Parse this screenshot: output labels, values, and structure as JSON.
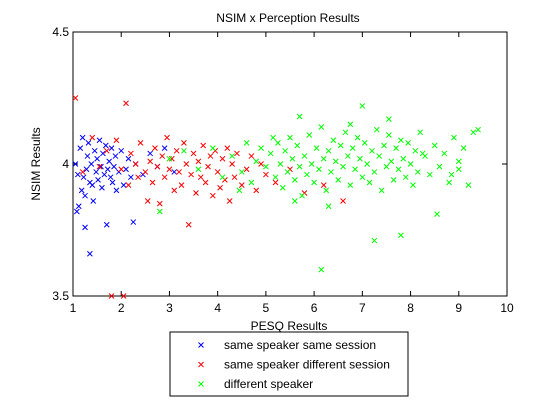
{
  "chart_data": {
    "type": "scatter",
    "title": "NSIM x Perception Results",
    "xlabel": "PESQ Results",
    "ylabel": "NSIM Results",
    "xlim": [
      1,
      10
    ],
    "ylim": [
      3.5,
      4.5
    ],
    "xticks": [
      "1",
      "2",
      "3",
      "4",
      "5",
      "6",
      "7",
      "8",
      "9",
      "10"
    ],
    "yticks": [
      "3.5",
      "4",
      "4.5"
    ],
    "grid": false,
    "legend_placement": "bottom-center",
    "marker": "x",
    "series": [
      {
        "name": "same speaker same session",
        "color": "#0000ff",
        "points": [
          [
            1.05,
            4.0
          ],
          [
            1.08,
            3.82
          ],
          [
            1.1,
            3.96
          ],
          [
            1.15,
            4.06
          ],
          [
            1.18,
            3.9
          ],
          [
            1.2,
            4.1
          ],
          [
            1.22,
            3.95
          ],
          [
            1.25,
            3.88
          ],
          [
            1.28,
            3.98
          ],
          [
            1.3,
            4.03
          ],
          [
            1.32,
            4.08
          ],
          [
            1.35,
            3.93
          ],
          [
            1.35,
            3.66
          ],
          [
            1.38,
            4.0
          ],
          [
            1.4,
            3.92
          ],
          [
            1.42,
            3.86
          ],
          [
            1.45,
            4.05
          ],
          [
            1.48,
            3.97
          ],
          [
            1.5,
            4.02
          ],
          [
            1.52,
            3.94
          ],
          [
            1.55,
            4.09
          ],
          [
            1.58,
            3.99
          ],
          [
            1.6,
            3.91
          ],
          [
            1.62,
            4.04
          ],
          [
            1.65,
            3.96
          ],
          [
            1.68,
            4.07
          ],
          [
            1.7,
            3.77
          ],
          [
            1.72,
            3.98
          ],
          [
            1.75,
            4.01
          ],
          [
            1.78,
            3.95
          ],
          [
            1.8,
            4.06
          ],
          [
            1.82,
            3.93
          ],
          [
            1.85,
            3.99
          ],
          [
            1.88,
            4.03
          ],
          [
            1.9,
            3.9
          ],
          [
            1.95,
            3.97
          ],
          [
            2.0,
            4.05
          ],
          [
            2.05,
            3.92
          ],
          [
            2.1,
            3.98
          ],
          [
            2.15,
            4.02
          ],
          [
            2.2,
            3.95
          ],
          [
            2.25,
            3.78
          ],
          [
            2.3,
            4.0
          ],
          [
            2.45,
            3.96
          ],
          [
            2.6,
            4.04
          ],
          [
            2.75,
            3.99
          ],
          [
            2.9,
            4.06
          ],
          [
            3.1,
            3.97
          ],
          [
            1.12,
            3.84
          ],
          [
            1.25,
            3.76
          ]
        ]
      },
      {
        "name": "same speaker different session",
        "color": "#ff0000",
        "points": [
          [
            1.05,
            4.25
          ],
          [
            1.2,
            3.97
          ],
          [
            1.4,
            4.1
          ],
          [
            1.55,
            3.99
          ],
          [
            1.7,
            4.05
          ],
          [
            1.8,
            3.5
          ],
          [
            1.9,
            4.09
          ],
          [
            2.0,
            3.98
          ],
          [
            2.1,
            4.23
          ],
          [
            2.15,
            3.92
          ],
          [
            2.2,
            4.04
          ],
          [
            2.3,
            4.0
          ],
          [
            2.35,
            3.95
          ],
          [
            2.4,
            4.08
          ],
          [
            2.5,
            3.97
          ],
          [
            2.55,
            3.86
          ],
          [
            2.6,
            4.01
          ],
          [
            2.65,
            3.93
          ],
          [
            2.7,
            4.06
          ],
          [
            2.75,
            3.99
          ],
          [
            2.8,
            3.85
          ],
          [
            2.85,
            4.03
          ],
          [
            2.9,
            3.95
          ],
          [
            2.95,
            4.1
          ],
          [
            3.0,
            3.98
          ],
          [
            3.05,
            4.02
          ],
          [
            3.1,
            3.9
          ],
          [
            3.15,
            4.05
          ],
          [
            3.2,
            3.97
          ],
          [
            3.25,
            3.92
          ],
          [
            3.3,
            4.08
          ],
          [
            3.35,
            4.0
          ],
          [
            3.4,
            3.77
          ],
          [
            3.45,
            3.96
          ],
          [
            3.5,
            4.04
          ],
          [
            3.55,
            3.89
          ],
          [
            3.6,
            4.01
          ],
          [
            3.65,
            3.95
          ],
          [
            3.7,
            4.07
          ],
          [
            3.75,
            3.93
          ],
          [
            3.8,
            3.99
          ],
          [
            3.85,
            4.03
          ],
          [
            3.9,
            3.88
          ],
          [
            3.95,
            4.05
          ],
          [
            4.0,
            3.97
          ],
          [
            4.05,
            3.91
          ],
          [
            4.1,
            4.02
          ],
          [
            4.15,
            3.94
          ],
          [
            4.2,
            4.06
          ],
          [
            4.25,
            3.86
          ],
          [
            4.3,
            4.0
          ],
          [
            4.35,
            3.95
          ],
          [
            4.4,
            4.04
          ],
          [
            4.5,
            3.92
          ],
          [
            4.6,
            3.98
          ],
          [
            4.7,
            4.03
          ],
          [
            4.8,
            3.9
          ],
          [
            4.9,
            4.0
          ],
          [
            5.0,
            3.96
          ],
          [
            5.2,
            3.93
          ],
          [
            5.5,
            3.98
          ],
          [
            5.8,
            3.89
          ],
          [
            6.2,
            3.92
          ],
          [
            6.6,
            3.86
          ],
          [
            2.05,
            3.5
          ]
        ]
      },
      {
        "name": "different speaker",
        "color": "#00ff00",
        "points": [
          [
            2.8,
            3.82
          ],
          [
            3.0,
            4.02
          ],
          [
            3.3,
            4.05
          ],
          [
            3.6,
            3.98
          ],
          [
            3.9,
            4.06
          ],
          [
            4.1,
            3.95
          ],
          [
            4.3,
            4.03
          ],
          [
            4.5,
            3.97
          ],
          [
            4.6,
            4.08
          ],
          [
            4.7,
            3.93
          ],
          [
            4.8,
            4.01
          ],
          [
            4.9,
            4.06
          ],
          [
            5.0,
            3.99
          ],
          [
            5.1,
            4.04
          ],
          [
            5.2,
            3.95
          ],
          [
            5.25,
            4.08
          ],
          [
            5.3,
            4.0
          ],
          [
            5.35,
            3.91
          ],
          [
            5.4,
            4.05
          ],
          [
            5.45,
            3.97
          ],
          [
            5.5,
            4.1
          ],
          [
            5.55,
            4.02
          ],
          [
            5.6,
            3.94
          ],
          [
            5.65,
            4.07
          ],
          [
            5.7,
            3.99
          ],
          [
            5.7,
            4.18
          ],
          [
            5.75,
            3.88
          ],
          [
            5.8,
            4.03
          ],
          [
            5.85,
            3.96
          ],
          [
            5.9,
            4.11
          ],
          [
            5.95,
            4.0
          ],
          [
            6.0,
            3.93
          ],
          [
            6.05,
            4.06
          ],
          [
            6.1,
            3.98
          ],
          [
            6.15,
            4.14
          ],
          [
            6.2,
            4.02
          ],
          [
            6.25,
            3.9
          ],
          [
            6.3,
            4.05
          ],
          [
            6.35,
            3.97
          ],
          [
            6.4,
            4.09
          ],
          [
            6.45,
            4.01
          ],
          [
            6.5,
            3.94
          ],
          [
            6.55,
            4.07
          ],
          [
            6.6,
            3.99
          ],
          [
            6.65,
            4.12
          ],
          [
            6.7,
            4.03
          ],
          [
            6.75,
            3.92
          ],
          [
            6.8,
            4.06
          ],
          [
            6.85,
            3.98
          ],
          [
            6.9,
            4.1
          ],
          [
            6.95,
            4.02
          ],
          [
            7.0,
            3.95
          ],
          [
            7.0,
            4.22
          ],
          [
            7.05,
            4.08
          ],
          [
            7.1,
            4.0
          ],
          [
            7.15,
            3.93
          ],
          [
            7.2,
            4.05
          ],
          [
            7.25,
            3.97
          ],
          [
            7.3,
            4.13
          ],
          [
            7.35,
            4.03
          ],
          [
            7.4,
            3.9
          ],
          [
            7.45,
            4.07
          ],
          [
            7.5,
            3.99
          ],
          [
            7.55,
            4.11
          ],
          [
            7.6,
            4.01
          ],
          [
            7.65,
            3.94
          ],
          [
            7.7,
            4.06
          ],
          [
            7.75,
            3.98
          ],
          [
            7.8,
            4.09
          ],
          [
            7.85,
            4.02
          ],
          [
            7.9,
            3.95
          ],
          [
            7.95,
            4.08
          ],
          [
            8.0,
            4.0
          ],
          [
            8.05,
            3.92
          ],
          [
            8.1,
            4.05
          ],
          [
            8.15,
            3.97
          ],
          [
            8.2,
            4.12
          ],
          [
            8.3,
            4.03
          ],
          [
            8.4,
            3.96
          ],
          [
            8.5,
            4.07
          ],
          [
            8.6,
            3.99
          ],
          [
            8.7,
            4.04
          ],
          [
            8.8,
            3.93
          ],
          [
            8.9,
            4.1
          ],
          [
            9.0,
            4.01
          ],
          [
            9.1,
            4.06
          ],
          [
            9.2,
            3.92
          ],
          [
            9.3,
            4.12
          ],
          [
            9.4,
            4.13
          ],
          [
            6.15,
            3.6
          ],
          [
            7.25,
            3.71
          ],
          [
            7.8,
            3.73
          ],
          [
            8.55,
            3.81
          ],
          [
            6.3,
            3.84
          ],
          [
            5.6,
            3.86
          ],
          [
            8.85,
            3.96
          ],
          [
            9.0,
            3.98
          ],
          [
            6.75,
            4.15
          ],
          [
            7.55,
            4.17
          ],
          [
            8.25,
            4.04
          ],
          [
            5.15,
            4.1
          ],
          [
            4.45,
            3.9
          ]
        ]
      }
    ]
  }
}
